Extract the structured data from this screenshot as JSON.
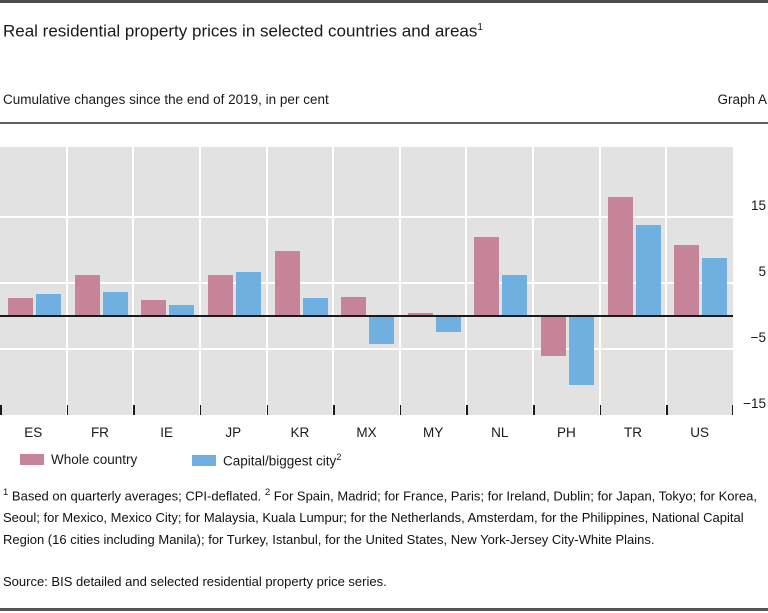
{
  "header": {
    "title": "Real residential property prices in selected countries and areas",
    "title_footnote_marker": "1",
    "subtitle": "Cumulative changes since the end of 2019, in per cent",
    "graph_label": "Graph A"
  },
  "chart_data": {
    "type": "bar",
    "categories": [
      "ES",
      "FR",
      "IE",
      "JP",
      "KR",
      "MX",
      "MY",
      "NL",
      "PH",
      "TR",
      "US"
    ],
    "series": [
      {
        "name": "Whole country",
        "color": "#c58498",
        "values": [
          2.8,
          6.2,
          2.4,
          6.2,
          9.9,
          2.9,
          0.5,
          12.0,
          -6.0,
          18.0,
          10.8
        ]
      },
      {
        "name": "Capital/biggest city",
        "name_footnote_marker": "2",
        "color": "#70b0e1",
        "values": [
          3.3,
          3.7,
          1.6,
          6.7,
          2.8,
          -4.3,
          -2.5,
          6.2,
          -10.5,
          13.8,
          8.8
        ]
      }
    ],
    "title": "Real residential property prices in selected countries and areas",
    "subtitle": "Cumulative changes since the end of 2019, in per cent",
    "xlabel": "",
    "ylabel": "per cent",
    "yticks": [
      15,
      5,
      -5,
      -15
    ],
    "ylim": [
      -15,
      25.6
    ],
    "zero_line": true,
    "grid": "white gridlines on gray panel background, one panel per country",
    "legend_position": "bottom-left"
  },
  "colors": {
    "whole_country": "#c58498",
    "capital_city": "#70b0e1",
    "plot_background": "#e3e2e2",
    "gridline": "#ffffff",
    "zero_line": "#1a1a1a",
    "rule": "#4d4d4d"
  },
  "footnotes": {
    "marker1": "1",
    "note1": "Based on quarterly averages; CPI-deflated.",
    "marker2": "2",
    "note2": "For Spain, Madrid; for France, Paris; for Ireland, Dublin; for Japan, Tokyo; for Korea, Seoul; for Mexico, Mexico City; for Malaysia, Kuala Lumpur; for the Netherlands, Amsterdam, for the Philippines, National Capital Region (16 cities including Manila); for Turkey, Istanbul, for the United States, New York-Jersey City-White Plains.",
    "source": "Source: BIS detailed and selected residential property price series."
  }
}
